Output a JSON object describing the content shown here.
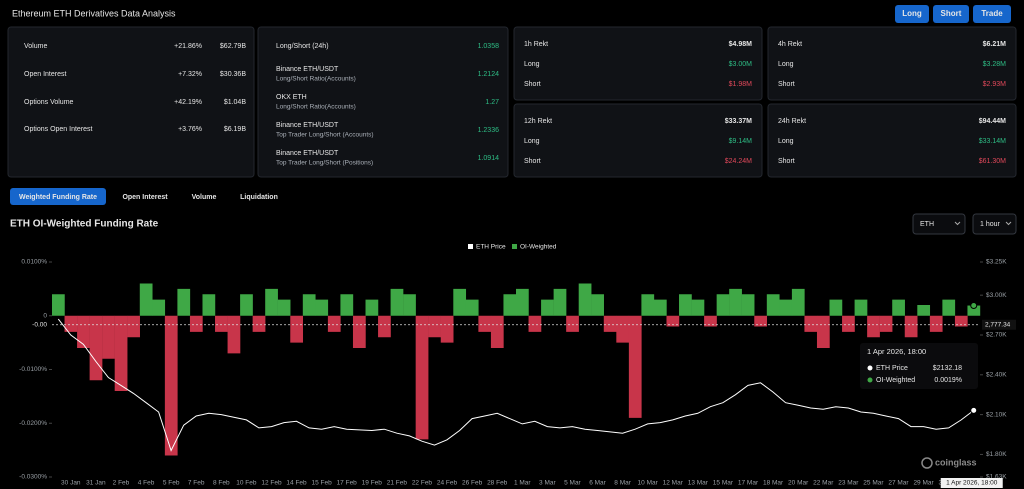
{
  "header": {
    "title": "Ethereum ETH Derivatives Data Analysis",
    "buttons": [
      "Long",
      "Short",
      "Trade"
    ]
  },
  "market_stats": [
    {
      "label": "Volume",
      "change": "+21.86%",
      "value": "$62.79B"
    },
    {
      "label": "Open Interest",
      "change": "+7.32%",
      "value": "$30.36B"
    },
    {
      "label": "Options Volume",
      "change": "+42.19%",
      "value": "$1.04B"
    },
    {
      "label": "Options Open Interest",
      "change": "+3.76%",
      "value": "$6.19B"
    }
  ],
  "long_short": [
    {
      "label": "Long/Short (24h)",
      "value": "1.0358"
    },
    {
      "label": "Binance ETH/USDT",
      "sublabel": "Long/Short Ratio(Accounts)",
      "value": "1.2124"
    },
    {
      "label": "OKX ETH",
      "sublabel": "Long/Short Ratio(Accounts)",
      "value": "1.27"
    },
    {
      "label": "Binance ETH/USDT",
      "sublabel": "Top Trader Long/Short (Accounts)",
      "value": "1.2336"
    },
    {
      "label": "Binance ETH/USDT",
      "sublabel": "Top Trader Long/Short (Positions)",
      "value": "1.0914"
    }
  ],
  "rekt": [
    {
      "title": "1h Rekt",
      "total": "$4.98M",
      "long_label": "Long",
      "long": "$3.00M",
      "short_label": "Short",
      "short": "$1.98M"
    },
    {
      "title": "4h Rekt",
      "total": "$6.21M",
      "long_label": "Long",
      "long": "$3.28M",
      "short_label": "Short",
      "short": "$2.93M"
    },
    {
      "title": "12h Rekt",
      "total": "$33.37M",
      "long_label": "Long",
      "long": "$9.14M",
      "short_label": "Short",
      "short": "$24.24M"
    },
    {
      "title": "24h Rekt",
      "total": "$94.44M",
      "long_label": "Long",
      "long": "$33.14M",
      "short_label": "Short",
      "short": "$61.30M"
    }
  ],
  "tabs": {
    "items": [
      "Weighted Funding Rate",
      "Open Interest",
      "Volume",
      "Liquidation"
    ],
    "active": 0
  },
  "chart_header": {
    "title": "ETH OI-Weighted Funding Rate",
    "selects": [
      "ETH",
      "1 hour"
    ]
  },
  "chart_data": {
    "type": "bar",
    "categories": [
      null,
      "30 Jan",
      null,
      "31 Jan",
      null,
      "2 Feb",
      null,
      "4 Feb",
      null,
      "5 Feb",
      null,
      "7 Feb",
      null,
      "8 Feb",
      null,
      "10 Feb",
      null,
      "12 Feb",
      null,
      "14 Feb",
      null,
      "15 Feb",
      null,
      "17 Feb",
      null,
      "19 Feb",
      null,
      "21 Feb",
      null,
      "22 Feb",
      null,
      "24 Feb",
      null,
      "26 Feb",
      null,
      "28 Feb",
      null,
      "1 Mar",
      null,
      "3 Mar",
      null,
      "5 Mar",
      null,
      "6 Mar",
      null,
      "8 Mar",
      null,
      "10 Mar",
      null,
      "12 Mar",
      null,
      "13 Mar",
      null,
      "15 Mar",
      null,
      "17 Mar",
      null,
      "18 Mar",
      null,
      "20 Mar",
      null,
      "22 Mar",
      null,
      "23 Mar",
      null,
      "25 Mar",
      null,
      "27 Mar",
      null,
      "29 Mar",
      null,
      "30 Mar",
      null,
      "1 Apr 2026, 18:00"
    ],
    "series": [
      {
        "name": "ETH Price",
        "type": "line",
        "axis": "y2",
        "color": "#ffffff",
        "values": [
          2820,
          2700,
          2630,
          2500,
          2380,
          2320,
          2260,
          2190,
          2120,
          1830,
          2020,
          2090,
          2110,
          2100,
          2080,
          2060,
          2000,
          2010,
          2040,
          2050,
          2000,
          1990,
          2010,
          1990,
          1985,
          1980,
          1990,
          1960,
          1940,
          1900,
          1870,
          1910,
          1980,
          2070,
          2090,
          2110,
          2070,
          2030,
          2050,
          2010,
          2000,
          2010,
          1990,
          1980,
          1970,
          1960,
          1990,
          2030,
          2040,
          2060,
          2090,
          2110,
          2160,
          2190,
          2250,
          2320,
          2340,
          2270,
          2190,
          2170,
          2150,
          2140,
          2160,
          2150,
          2120,
          2110,
          2090,
          2070,
          2010,
          2010,
          1990,
          2000,
          2060,
          2132.18
        ]
      },
      {
        "name": "OI-Weighted",
        "type": "bar",
        "color": "#3fa846",
        "negative_color": "#c8354a",
        "values": [
          0.004,
          -0.003,
          -0.006,
          -0.012,
          -0.008,
          -0.014,
          -0.004,
          0.006,
          0.003,
          -0.026,
          0.005,
          -0.003,
          0.004,
          -0.003,
          -0.007,
          0.004,
          -0.003,
          0.005,
          0.003,
          -0.005,
          0.004,
          0.003,
          -0.003,
          0.004,
          -0.006,
          0.003,
          -0.004,
          0.005,
          0.004,
          -0.023,
          -0.004,
          -0.005,
          0.005,
          0.003,
          -0.003,
          -0.006,
          0.004,
          0.005,
          -0.003,
          0.003,
          0.005,
          -0.003,
          0.006,
          0.004,
          -0.003,
          -0.005,
          -0.019,
          0.004,
          0.003,
          -0.002,
          0.004,
          0.003,
          -0.002,
          0.004,
          0.005,
          0.004,
          -0.002,
          0.004,
          0.003,
          0.005,
          -0.003,
          -0.006,
          0.003,
          -0.003,
          0.003,
          -0.004,
          -0.003,
          0.003,
          -0.004,
          0.002,
          -0.003,
          0.003,
          -0.002,
          0.0019
        ]
      }
    ],
    "ylim": [
      -0.03,
      0.01
    ],
    "yticks": [
      {
        "value": 0.01,
        "label": "0.0100%"
      },
      0,
      {
        "value": -0.01,
        "label": "-0.0100%"
      },
      {
        "value": -0.02,
        "label": "-0.0200%"
      },
      {
        "value": -0.03,
        "label": "-0.0300%"
      }
    ],
    "y2lim": [
      1630,
      3250
    ],
    "y2ticks": [
      {
        "value": 3250,
        "label": "$3.25K"
      },
      {
        "value": 3000,
        "label": "$3.00K"
      },
      {
        "value": 2700,
        "label": "$2.70K"
      },
      {
        "value": 2400,
        "label": "$2.40K"
      },
      {
        "value": 2100,
        "label": "$2.10K"
      },
      {
        "value": 1800,
        "label": "$1.80K"
      },
      {
        "value": 1630,
        "label": "$1.63K"
      }
    ],
    "grid": false,
    "crosshair": {
      "value": 2777.34,
      "label": "2,777.34",
      "left_label": "-0.00"
    },
    "tooltip": {
      "price_label": "$2132.18",
      "rate_label": "0.0019%"
    }
  },
  "watermark": "coinglass"
}
